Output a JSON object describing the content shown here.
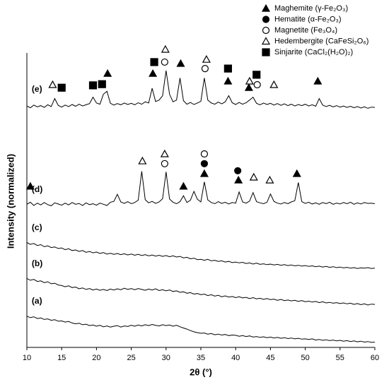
{
  "chart_data": {
    "type": "line",
    "xlabel": "2θ (°)",
    "ylabel": "Intensity (normalized)",
    "color": "#000000",
    "x": [
      10,
      10.5,
      11,
      11.5,
      12,
      12.5,
      13,
      13.5,
      14,
      14.5,
      15,
      15.5,
      16,
      16.5,
      17,
      17.5,
      18,
      18.5,
      19,
      19.5,
      20,
      20.5,
      21,
      21.5,
      22,
      22.5,
      23,
      23.5,
      24,
      24.5,
      25,
      25.5,
      26,
      26.5,
      27,
      27.5,
      28,
      28.5,
      29,
      29.5,
      30,
      30.5,
      31,
      31.5,
      32,
      32.5,
      33,
      33.5,
      34,
      34.5,
      35,
      35.5,
      36,
      36.5,
      37,
      37.5,
      38,
      38.5,
      39,
      39.5,
      40,
      40.5,
      41,
      41.5,
      42,
      42.5,
      43,
      43.5,
      44,
      44.5,
      45,
      45.5,
      46,
      46.5,
      47,
      47.5,
      48,
      48.5,
      49,
      49.5,
      50,
      50.5,
      51,
      51.5,
      52,
      52.5,
      53,
      53.5,
      54,
      54.5,
      55,
      55.5,
      56,
      56.5,
      57,
      57.5,
      58,
      58.5,
      59,
      59.5,
      60
    ],
    "xlim": [
      10,
      60
    ],
    "xticks": [
      10,
      15,
      20,
      25,
      30,
      35,
      40,
      45,
      50,
      55,
      60
    ],
    "ylim": [
      0,
      100
    ],
    "series": [
      {
        "name": "(a)",
        "values": [
          10.6,
          10.1,
          10.4,
          9.8,
          10.0,
          9.5,
          9.7,
          9.2,
          9.4,
          8.9,
          9.0,
          8.6,
          8.8,
          8.3,
          8.0,
          8.2,
          7.7,
          7.9,
          7.4,
          7.6,
          7.2,
          7.5,
          7.0,
          7.3,
          6.9,
          7.2,
          7.4,
          6.9,
          7.3,
          7.1,
          7.5,
          7.2,
          7.6,
          7.3,
          7.7,
          7.4,
          7.8,
          7.5,
          7.3,
          7.7,
          7.4,
          7.6,
          7.2,
          7.5,
          7.0,
          6.6,
          6.2,
          5.7,
          5.3,
          5.0,
          4.8,
          4.9,
          4.5,
          4.7,
          4.3,
          4.5,
          4.2,
          4.4,
          4.0,
          4.2,
          4.1,
          3.8,
          4.0,
          3.7,
          3.9,
          3.5,
          3.7,
          3.4,
          3.6,
          3.3,
          3.5,
          3.2,
          3.4,
          3.1,
          3.3,
          3.0,
          3.2,
          2.9,
          3.1,
          2.8,
          2.9,
          2.7,
          2.9,
          2.5,
          2.7,
          2.4,
          2.6,
          2.3,
          2.5,
          2.2,
          2.4,
          2.1,
          2.3,
          2.0,
          2.2,
          1.9,
          2.1,
          1.8,
          2.0,
          1.7,
          1.8
        ]
      },
      {
        "name": "(b)",
        "values": [
          23.4,
          22.8,
          23.1,
          22.4,
          22.6,
          22.0,
          22.3,
          21.6,
          21.8,
          21.2,
          21.0,
          20.6,
          20.9,
          20.3,
          20.5,
          19.9,
          20.2,
          19.7,
          20.0,
          19.5,
          19.8,
          19.4,
          19.7,
          19.3,
          19.8,
          19.5,
          19.9,
          19.6,
          20.1,
          19.7,
          20.0,
          19.6,
          20.0,
          19.7,
          19.4,
          19.8,
          19.5,
          19.9,
          19.3,
          19.6,
          19.2,
          19.5,
          19.0,
          19.2,
          18.7,
          18.9,
          18.4,
          18.6,
          18.1,
          18.3,
          17.9,
          18.1,
          17.6,
          17.9,
          17.4,
          17.7,
          17.2,
          17.5,
          17.1,
          17.3,
          16.9,
          17.2,
          16.8,
          17.0,
          16.6,
          16.9,
          16.5,
          16.7,
          16.3,
          16.6,
          16.2,
          16.4,
          16.0,
          16.3,
          15.9,
          16.1,
          15.8,
          16.0,
          15.6,
          15.9,
          15.5,
          15.7,
          15.4,
          15.6,
          15.2,
          15.5,
          15.1,
          15.3,
          15.0,
          15.2,
          14.9,
          15.1,
          14.8,
          15.0,
          14.6,
          14.9,
          14.5,
          14.8,
          14.4,
          14.7,
          14.6
        ]
      },
      {
        "name": "(c)",
        "values": [
          35.6,
          35.0,
          35.3,
          34.6,
          34.9,
          34.2,
          34.5,
          33.9,
          34.1,
          33.6,
          33.8,
          33.2,
          33.5,
          32.9,
          33.1,
          32.6,
          32.9,
          32.3,
          32.6,
          32.1,
          32.4,
          31.9,
          32.2,
          31.7,
          32.0,
          31.6,
          31.9,
          31.5,
          31.8,
          31.4,
          31.7,
          31.3,
          31.6,
          31.2,
          31.5,
          31.1,
          31.4,
          31.0,
          31.3,
          30.9,
          31.2,
          30.8,
          31.1,
          30.7,
          30.9,
          30.4,
          30.6,
          30.1,
          30.3,
          29.8,
          29.9,
          29.6,
          29.9,
          29.4,
          29.6,
          29.2,
          29.4,
          29.0,
          29.2,
          28.8,
          29.0,
          28.7,
          28.9,
          28.5,
          28.7,
          28.3,
          28.6,
          28.2,
          28.4,
          28.1,
          28.3,
          28.0,
          28.2,
          27.9,
          28.1,
          27.8,
          28.0,
          27.7,
          27.9,
          27.6,
          27.8,
          27.5,
          27.7,
          27.4,
          27.6,
          27.3,
          27.5,
          27.2,
          27.4,
          27.1,
          27.3,
          27.0,
          27.2,
          26.9,
          27.1,
          26.8,
          27.0,
          26.9,
          27.1,
          26.8,
          26.9
        ]
      },
      {
        "name": "(d)",
        "values": [
          48.6,
          49.3,
          48.2,
          49.0,
          48.4,
          49.2,
          48.5,
          48.1,
          49.1,
          48.7,
          48.3,
          49.0,
          48.4,
          49.2,
          48.6,
          48.9,
          48.2,
          49.1,
          48.5,
          48.8,
          48.3,
          49.0,
          48.6,
          48.2,
          49.3,
          49.6,
          52.0,
          49.4,
          48.9,
          49.5,
          48.8,
          49.2,
          50.0,
          59.8,
          50.2,
          49.1,
          49.6,
          48.9,
          49.4,
          50.5,
          59.6,
          50.4,
          49.3,
          48.8,
          49.5,
          51.5,
          49.2,
          50.0,
          53.0,
          50.3,
          49.4,
          56.2,
          50.1,
          49.2,
          48.8,
          49.5,
          48.9,
          49.3,
          48.7,
          49.2,
          49.0,
          52.8,
          49.4,
          49.0,
          49.7,
          52.6,
          49.5,
          49.1,
          48.8,
          49.3,
          52.1,
          49.6,
          49.0,
          48.7,
          49.2,
          48.8,
          49.4,
          49.8,
          56.0,
          49.5,
          48.9,
          49.3,
          48.7,
          49.1,
          48.6,
          49.2,
          48.8,
          49.3,
          48.6,
          49.0,
          48.7,
          49.2,
          48.8,
          49.3,
          48.6,
          49.1,
          48.7,
          49.2,
          48.9,
          49.0,
          48.8
        ]
      },
      {
        "name": "(e)",
        "values": [
          82.0,
          81.4,
          82.3,
          81.7,
          82.1,
          81.5,
          82.4,
          81.8,
          84.5,
          82.2,
          81.6,
          82.3,
          81.8,
          82.5,
          81.9,
          82.6,
          82.0,
          82.4,
          82.8,
          85.0,
          83.0,
          82.6,
          86.0,
          87.0,
          82.9,
          82.3,
          82.8,
          82.4,
          83.0,
          82.5,
          82.9,
          82.4,
          83.1,
          82.6,
          83.4,
          83.0,
          88.0,
          83.5,
          84.0,
          85.5,
          94.0,
          86.0,
          83.4,
          84.0,
          91.5,
          83.8,
          82.6,
          83.2,
          82.5,
          83.0,
          83.6,
          91.5,
          84.0,
          83.0,
          82.6,
          83.3,
          82.7,
          83.4,
          85.5,
          83.1,
          82.5,
          83.2,
          82.6,
          83.1,
          84.0,
          85.0,
          82.9,
          82.4,
          83.0,
          82.5,
          82.9,
          82.3,
          82.8,
          82.2,
          82.7,
          82.1,
          82.6,
          82.0,
          82.5,
          82.1,
          82.6,
          82.0,
          82.4,
          81.9,
          84.5,
          82.3,
          81.8,
          82.2,
          81.7,
          82.1,
          81.6,
          82.0,
          81.5,
          81.9,
          81.4,
          81.8,
          81.3,
          81.7,
          81.2,
          81.6,
          81.5
        ]
      }
    ],
    "phases": [
      {
        "name": "Maghemite (γ-Fe₂O₃)",
        "marker": "triangle",
        "filled": true
      },
      {
        "name": "Hematite (α-Fe₂O₃)",
        "marker": "circle",
        "filled": true
      },
      {
        "name": "Magnetite (Fe₃O₄)",
        "marker": "circle",
        "filled": false
      },
      {
        "name": "Hedembergite (CaFeSi₂O₆)",
        "marker": "triangle",
        "filled": false
      },
      {
        "name": "Sinjarite (CaCl₂(H₂O)₂)",
        "marker": "square",
        "filled": true
      }
    ],
    "peak_markers": [
      {
        "phase": 3,
        "x": 13.7,
        "y": 89.2
      },
      {
        "phase": 4,
        "x": 15.0,
        "y": 88.2
      },
      {
        "phase": 4,
        "x": 19.5,
        "y": 89.0
      },
      {
        "phase": 4,
        "x": 20.8,
        "y": 89.4
      },
      {
        "phase": 0,
        "x": 21.6,
        "y": 93.0
      },
      {
        "phase": 0,
        "x": 28.1,
        "y": 93.0
      },
      {
        "phase": 4,
        "x": 28.3,
        "y": 96.9
      },
      {
        "phase": 2,
        "x": 29.8,
        "y": 96.9
      },
      {
        "phase": 3,
        "x": 29.9,
        "y": 101.2
      },
      {
        "phase": 0,
        "x": 32.1,
        "y": 96.4
      },
      {
        "phase": 2,
        "x": 35.6,
        "y": 94.7
      },
      {
        "phase": 3,
        "x": 35.8,
        "y": 97.8
      },
      {
        "phase": 4,
        "x": 38.9,
        "y": 94.7
      },
      {
        "phase": 0,
        "x": 38.9,
        "y": 90.4
      },
      {
        "phase": 0,
        "x": 41.9,
        "y": 88.2
      },
      {
        "phase": 3,
        "x": 42.0,
        "y": 90.4
      },
      {
        "phase": 4,
        "x": 43.0,
        "y": 92.6
      },
      {
        "phase": 2,
        "x": 43.1,
        "y": 89.2
      },
      {
        "phase": 3,
        "x": 45.5,
        "y": 89.2
      },
      {
        "phase": 0,
        "x": 51.8,
        "y": 90.4
      },
      {
        "phase": 0,
        "x": 10.5,
        "y": 54.7
      },
      {
        "phase": 3,
        "x": 26.6,
        "y": 63.3
      },
      {
        "phase": 3,
        "x": 29.8,
        "y": 65.7
      },
      {
        "phase": 2,
        "x": 29.8,
        "y": 62.4
      },
      {
        "phase": 0,
        "x": 32.5,
        "y": 54.7
      },
      {
        "phase": 2,
        "x": 35.5,
        "y": 65.7
      },
      {
        "phase": 1,
        "x": 35.5,
        "y": 62.4
      },
      {
        "phase": 0,
        "x": 35.5,
        "y": 59.0
      },
      {
        "phase": 1,
        "x": 40.3,
        "y": 60.0
      },
      {
        "phase": 0,
        "x": 40.4,
        "y": 56.8
      },
      {
        "phase": 3,
        "x": 42.6,
        "y": 57.8
      },
      {
        "phase": 3,
        "x": 44.9,
        "y": 56.8
      },
      {
        "phase": 0,
        "x": 48.8,
        "y": 59.0
      }
    ]
  }
}
